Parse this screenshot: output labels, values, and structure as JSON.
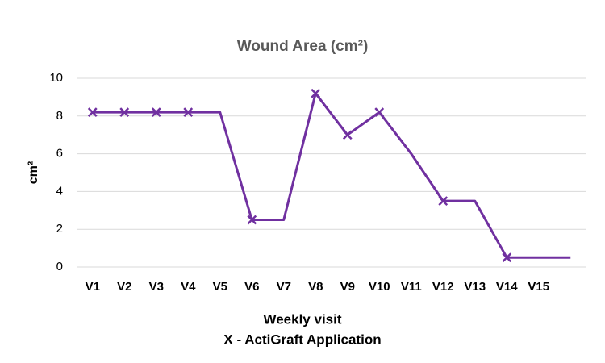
{
  "chart_data": {
    "type": "line",
    "title": "Wound Area (cm²)",
    "ylabel": "cm²",
    "xlabel": "Weekly visit",
    "annotation": "X - ActiGraft Application",
    "categories": [
      "V1",
      "V2",
      "V3",
      "V4",
      "V5",
      "V6",
      "V7",
      "V8",
      "V9",
      "V10",
      "V11",
      "V12",
      "V13",
      "V14",
      "V15",
      null
    ],
    "series": [
      {
        "name": "Wound Area",
        "color": "#7030a0",
        "values": [
          8.2,
          8.2,
          8.2,
          8.2,
          8.2,
          2.5,
          2.5,
          9.2,
          7.0,
          8.2,
          6.0,
          3.5,
          3.5,
          0.5,
          0.5,
          0.5
        ],
        "markers": [
          true,
          true,
          true,
          true,
          false,
          true,
          false,
          true,
          true,
          true,
          false,
          true,
          false,
          true,
          false,
          false
        ]
      }
    ],
    "ylim": [
      0,
      10
    ],
    "yticks": [
      0,
      2,
      4,
      6,
      8,
      10
    ],
    "grid": true,
    "legend": false
  }
}
